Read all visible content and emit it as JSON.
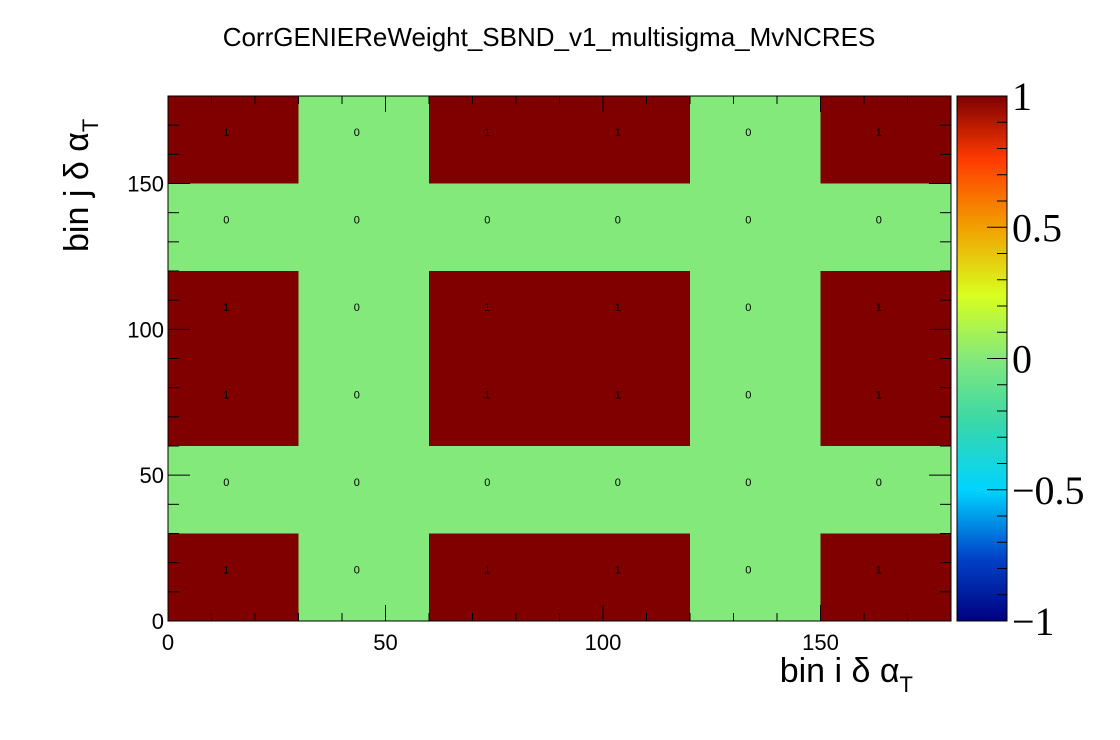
{
  "chart_data": {
    "type": "heatmap",
    "title": "CorrGENIEReWeight_SBND_v1_multisigma_MvNCRES",
    "xlabel": {
      "main": "bin i δ α",
      "sub": "T"
    },
    "ylabel": {
      "main": "bin j δ α",
      "sub": "T"
    },
    "xlim": [
      0,
      180
    ],
    "ylim": [
      0,
      180
    ],
    "x_ticks": [
      0,
      50,
      100,
      150
    ],
    "y_ticks": [
      0,
      50,
      100,
      150
    ],
    "x_edges": [
      0,
      30,
      60,
      90,
      120,
      150,
      180
    ],
    "y_edges": [
      0,
      30,
      60,
      90,
      120,
      150,
      180
    ],
    "z_range": [
      -1,
      1
    ],
    "palette_ticks": [
      "1",
      "0.5",
      "0",
      "−0.5",
      "−1"
    ],
    "palette_values": [
      1,
      0.5,
      0,
      -0.5,
      -1
    ],
    "colors": {
      "high": "#800000",
      "zero": "#83e97b"
    },
    "values": [
      [
        1,
        0,
        1,
        1,
        0,
        1
      ],
      [
        0,
        0,
        0,
        0,
        0,
        0
      ],
      [
        1,
        0,
        1,
        1,
        0,
        1
      ],
      [
        1,
        0,
        1,
        1,
        0,
        1
      ],
      [
        0,
        0,
        0,
        0,
        0,
        0
      ],
      [
        1,
        0,
        1,
        1,
        0,
        1
      ]
    ],
    "cell_labels": [
      [
        "1",
        "0",
        "1",
        "1",
        "0",
        "1"
      ],
      [
        "0",
        "0",
        "0",
        "0",
        "0",
        "0"
      ],
      [
        "1",
        "0",
        "1",
        "1",
        "0",
        "1"
      ],
      [
        "1",
        "0",
        "1",
        "1",
        "0",
        "1"
      ],
      [
        "0",
        "0",
        "0",
        "0",
        "0",
        "0"
      ],
      [
        "1",
        "0",
        "1",
        "1",
        "0",
        "1"
      ]
    ]
  }
}
